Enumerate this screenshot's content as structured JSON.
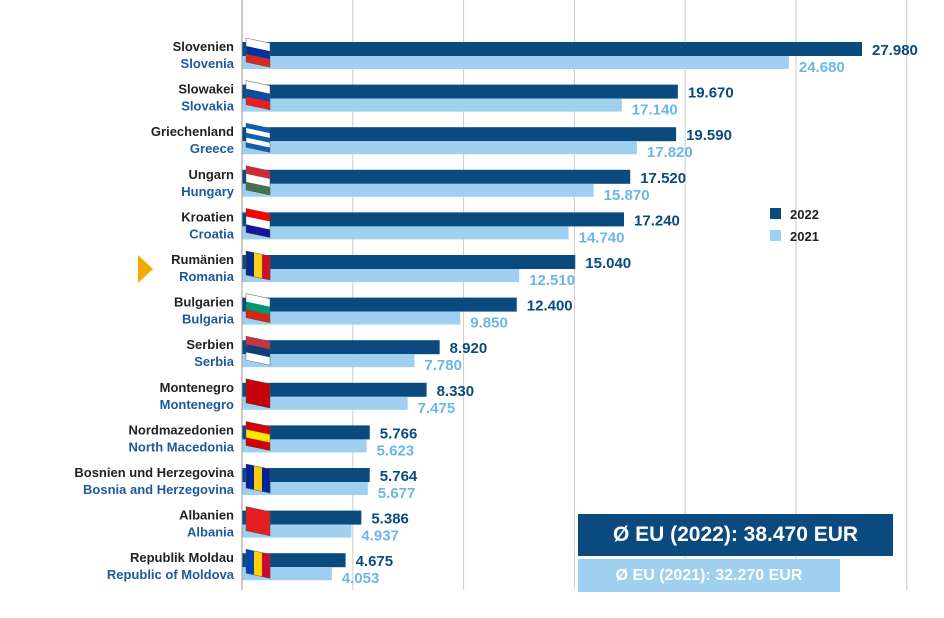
{
  "chart_data": {
    "type": "bar",
    "orientation": "horizontal",
    "title": "",
    "xlabel": "",
    "ylabel": "",
    "xlim": [
      0,
      30000
    ],
    "grid": true,
    "highlight": "Romania",
    "categories_de": [
      "Slovenien",
      "Slowakei",
      "Griechenland",
      "Ungarn",
      "Kroatien",
      "Rumänien",
      "Bulgarien",
      "Serbien",
      "Montenegro",
      "Nordmazedonien",
      "Bosnien und Herzegovina",
      "Albanien",
      "Republik Moldau"
    ],
    "categories_en": [
      "Slovenia",
      "Slovakia",
      "Greece",
      "Hungary",
      "Croatia",
      "Romania",
      "Bulgaria",
      "Serbia",
      "Montenegro",
      "North Macedonia",
      "Bosnia and Herzegovina",
      "Albania",
      "Republic of Moldova"
    ],
    "series": [
      {
        "name": "2022",
        "color": "#0a4a7e",
        "values": [
          27980,
          19670,
          19590,
          17520,
          17240,
          15040,
          12400,
          8920,
          8330,
          5766,
          5764,
          5386,
          4675
        ],
        "labels": [
          "27.980",
          "19.670",
          "19.590",
          "17.520",
          "17.240",
          "15.040",
          "12.400",
          "8.920",
          "8.330",
          "5.766",
          "5.764",
          "5.386",
          "4.675"
        ]
      },
      {
        "name": "2021",
        "color": "#9fd0ef",
        "label_color": "#6db6e6",
        "values": [
          24680,
          17140,
          17820,
          15870,
          14740,
          12510,
          9850,
          7780,
          7475,
          5623,
          5677,
          4937,
          4053
        ],
        "labels": [
          "24.680",
          "17.140",
          "17.820",
          "15.870",
          "14.740",
          "12.510",
          "9.850",
          "7.780",
          "7.475",
          "5.623",
          "5.677",
          "4.937",
          "4.053"
        ]
      }
    ],
    "legend": {
      "position": "right",
      "entries": [
        "2022",
        "2021"
      ]
    },
    "annotations": {
      "eu_2022": "Ø EU (2022): 38.470 EUR",
      "eu_2021": "Ø EU (2021): 32.270 EUR"
    }
  },
  "colors": {
    "dark_blue": "#0a4a7e",
    "light_blue": "#9fd0ef",
    "label_light_blue": "#6db6e6",
    "country_en": "#1d5a9a",
    "highlight_arrow": "#f2a900",
    "grid": "#cccccc"
  },
  "flags": [
    {
      "name": "slovenia-flag-icon",
      "stripes": [
        "#ffffff",
        "#0033a0",
        "#d52b1e"
      ],
      "dir": "h"
    },
    {
      "name": "slovakia-flag-icon",
      "stripes": [
        "#ffffff",
        "#0b4ea2",
        "#ee1c25"
      ],
      "dir": "h"
    },
    {
      "name": "greece-flag-icon",
      "stripes": [
        "#0d5eaf",
        "#ffffff",
        "#0d5eaf",
        "#ffffff",
        "#0d5eaf"
      ],
      "dir": "h"
    },
    {
      "name": "hungary-flag-icon",
      "stripes": [
        "#ce2939",
        "#ffffff",
        "#477050"
      ],
      "dir": "h"
    },
    {
      "name": "croatia-flag-icon",
      "stripes": [
        "#ff0000",
        "#ffffff",
        "#171796"
      ],
      "dir": "h"
    },
    {
      "name": "romania-flag-icon",
      "stripes": [
        "#002b7f",
        "#fcd116",
        "#ce1126"
      ],
      "dir": "v"
    },
    {
      "name": "bulgaria-flag-icon",
      "stripes": [
        "#ffffff",
        "#00966e",
        "#d62612"
      ],
      "dir": "h"
    },
    {
      "name": "serbia-flag-icon",
      "stripes": [
        "#c6363c",
        "#0c4076",
        "#ffffff"
      ],
      "dir": "h"
    },
    {
      "name": "montenegro-flag-icon",
      "stripes": [
        "#c40308",
        "#c40308",
        "#c40308"
      ],
      "dir": "h"
    },
    {
      "name": "north-macedonia-flag-icon",
      "stripes": [
        "#d20000",
        "#ffe600",
        "#d20000"
      ],
      "dir": "h"
    },
    {
      "name": "bosnia-flag-icon",
      "stripes": [
        "#002395",
        "#fecb00",
        "#002395"
      ],
      "dir": "v"
    },
    {
      "name": "albania-flag-icon",
      "stripes": [
        "#e41e20",
        "#e41e20",
        "#e41e20"
      ],
      "dir": "h"
    },
    {
      "name": "moldova-flag-icon",
      "stripes": [
        "#0046ae",
        "#ffd200",
        "#cc092f"
      ],
      "dir": "v"
    }
  ]
}
